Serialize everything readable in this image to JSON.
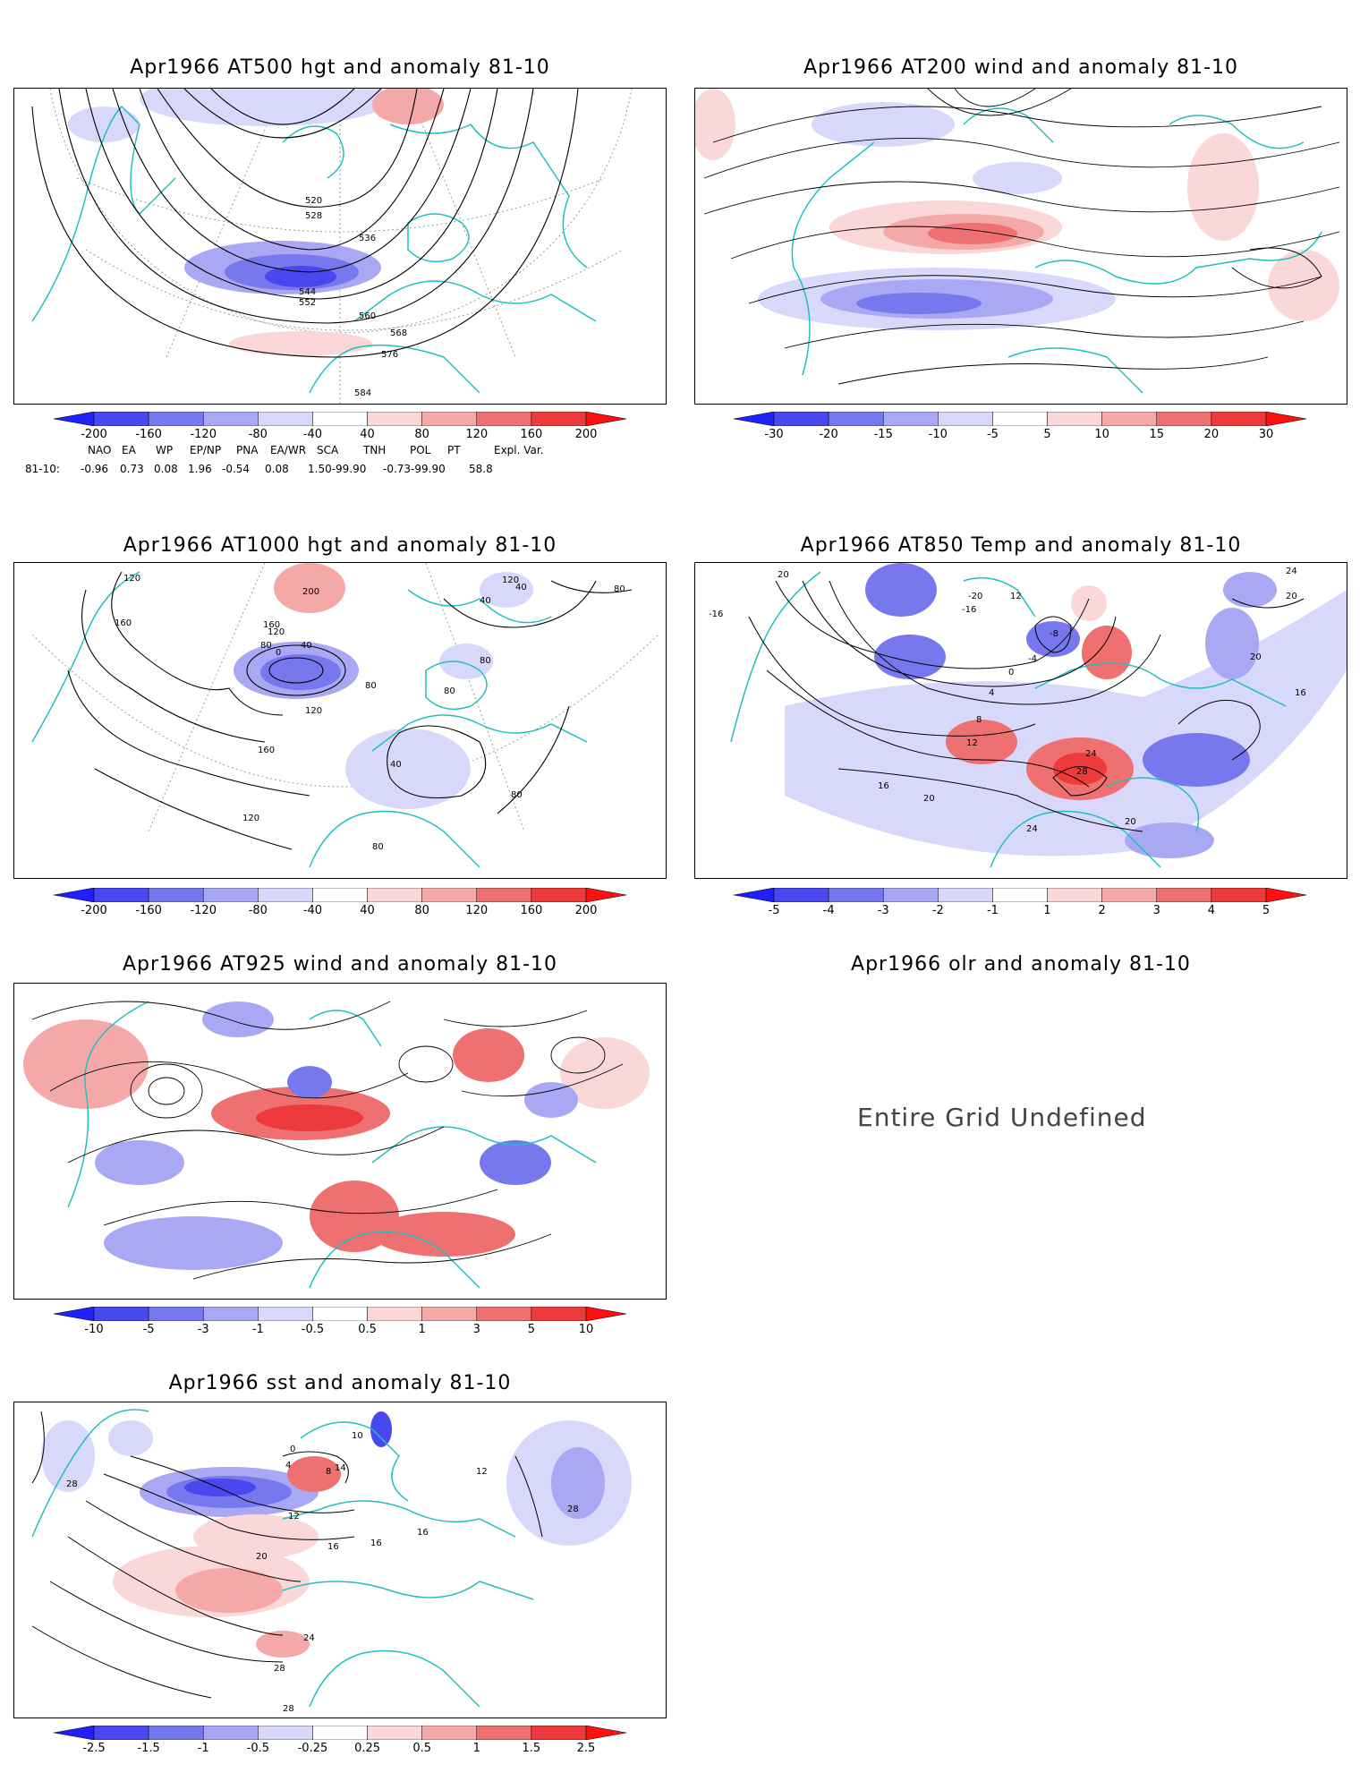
{
  "panels": [
    {
      "id": "p1",
      "title": "Apr1966 AT500 hgt and anomaly 81-10",
      "colorbar_labels": [
        "-200",
        "-160",
        "-120",
        "-80",
        "-40",
        "40",
        "80",
        "120",
        "160",
        "200"
      ],
      "contour_labels": [
        "520",
        "528",
        "536",
        "544",
        "552",
        "560",
        "568",
        "576",
        "584"
      ],
      "extra": {
        "indices_header": [
          "NAO",
          "EA",
          "WP",
          "EP/NP",
          "PNA",
          "EA/WR",
          "SCA",
          "TNH",
          "POL",
          "PT",
          "Expl. Var."
        ],
        "indices_row_label": "81-10:",
        "indices_values": [
          "-0.96",
          "0.73",
          "0.08",
          "1.96",
          "-0.54",
          "0.08",
          "1.50-99.90",
          "-0.73-99.90",
          "58.8"
        ]
      }
    },
    {
      "id": "p2",
      "title": "Apr1966 AT200 wind and anomaly 81-10",
      "colorbar_labels": [
        "-30",
        "-20",
        "-15",
        "-10",
        "-5",
        "5",
        "10",
        "15",
        "20",
        "30"
      ],
      "contour_labels": []
    },
    {
      "id": "p3",
      "title": "Apr1966 AT1000 hgt and anomaly 81-10",
      "colorbar_labels": [
        "-200",
        "-160",
        "-120",
        "-80",
        "-40",
        "40",
        "80",
        "120",
        "160",
        "200"
      ],
      "contour_labels": [
        "120",
        "160",
        "200",
        "120",
        "80",
        "40",
        "0",
        "80",
        "120",
        "160",
        "80",
        "40",
        "120",
        "160",
        "80",
        "40",
        "80",
        "120",
        "80",
        "80",
        "40"
      ]
    },
    {
      "id": "p4",
      "title": "Apr1966 AT850 Temp and anomaly 81-10",
      "colorbar_labels": [
        "-5",
        "-4",
        "-3",
        "-2",
        "-1",
        "1",
        "2",
        "3",
        "4",
        "5"
      ],
      "contour_labels": [
        "20",
        "-16",
        "-20",
        "-16",
        "12",
        "-8",
        "-4",
        "0",
        "4",
        "8",
        "12",
        "16",
        "20",
        "24",
        "28",
        "24",
        "20",
        "16",
        "20",
        "24",
        "20"
      ]
    },
    {
      "id": "p5",
      "title": "Apr1966 AT925 wind and anomaly 81-10",
      "colorbar_labels": [
        "-10",
        "-5",
        "-3",
        "-1",
        "-0.5",
        "0.5",
        "1",
        "3",
        "5",
        "10"
      ],
      "contour_labels": []
    },
    {
      "id": "p6",
      "title": "Apr1966 olr and anomaly 81-10",
      "message": "Entire Grid Undefined"
    },
    {
      "id": "p7",
      "title": "Apr1966 sst and anomaly 81-10",
      "colorbar_labels": [
        "-2.5",
        "-1.5",
        "-1",
        "-0.5",
        "-0.25",
        "0.25",
        "0.5",
        "1",
        "1.5",
        "2.5"
      ],
      "contour_labels": [
        "28",
        "0",
        "4",
        "8",
        "12",
        "14",
        "16",
        "16",
        "16",
        "20",
        "24",
        "28",
        "28",
        "12",
        "28",
        "10"
      ]
    }
  ],
  "colors": {
    "scale": [
      "#2020ff",
      "#4848ee",
      "#7878ee",
      "#a8a8f4",
      "#d8d8fa",
      "#ffffff",
      "#fad8d8",
      "#f4a8a8",
      "#ee7070",
      "#ee3a3a",
      "#ff1010"
    ],
    "coast": "#20c0c0",
    "contour": "#000000",
    "grid": "#9a9a9a"
  }
}
